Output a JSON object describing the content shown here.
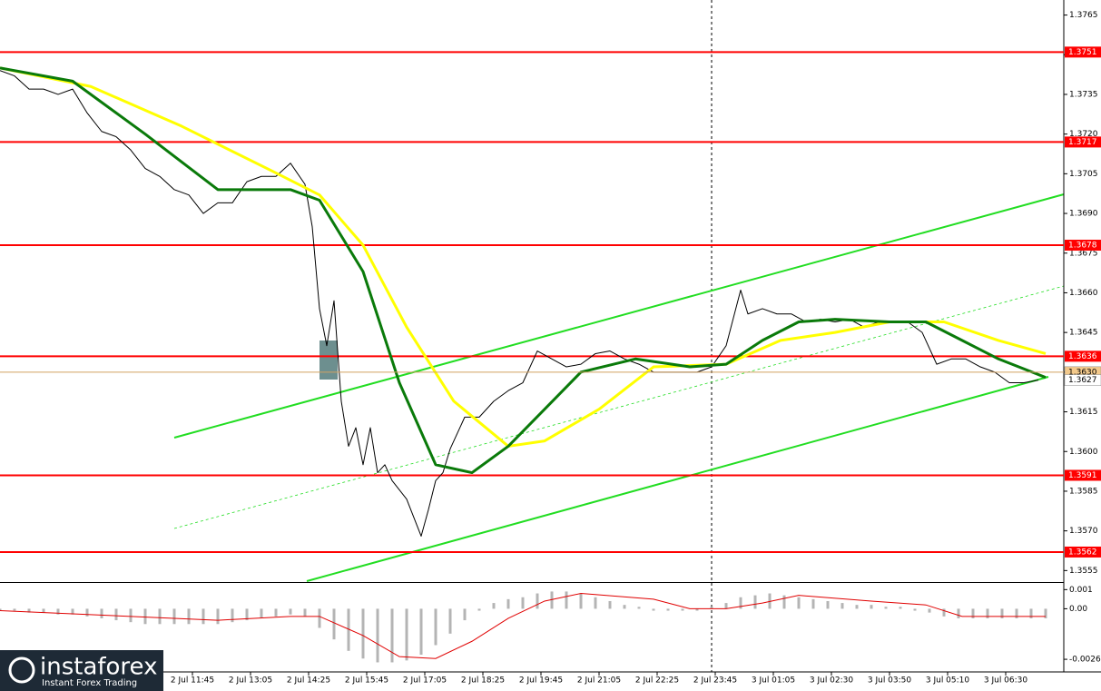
{
  "chart_data": [
    {
      "type": "line",
      "xlim": [
        0,
        293
      ],
      "xticks": [
        {
          "value": 53,
          "label": "2 Jul 11:45"
        },
        {
          "value": 69,
          "label": "2 Jul 13:05"
        },
        {
          "value": 85,
          "label": "2 Jul 14:25"
        },
        {
          "value": 101,
          "label": "2 Jul 15:45"
        },
        {
          "value": 117,
          "label": "2 Jul 17:05"
        },
        {
          "value": 133,
          "label": "2 Jul 18:25"
        },
        {
          "value": 149,
          "label": "2 Jul 19:45"
        },
        {
          "value": 165,
          "label": "2 Jul 21:05"
        },
        {
          "value": 181,
          "label": "2 Jul 22:25"
        },
        {
          "value": 197,
          "label": "2 Jul 23:45"
        },
        {
          "value": 213,
          "label": "3 Jul 01:05"
        },
        {
          "value": 229,
          "label": "3 Jul 02:30"
        },
        {
          "value": 245,
          "label": "3 Jul 03:50"
        },
        {
          "value": 261,
          "label": "3 Jul 05:10"
        },
        {
          "value": 277,
          "label": "3 Jul 06:30"
        }
      ],
      "ylim": [
        1.3551,
        1.377
      ],
      "yticks": [
        1.3765,
        {
          "value": 1.375,
          "label": "1.3750"
        },
        1.3735,
        {
          "value": 1.372,
          "label": "1.3720"
        },
        1.3705,
        {
          "value": 1.369,
          "label": "1.3690"
        },
        1.3675,
        {
          "value": 1.366,
          "label": "1.3660"
        },
        1.3645,
        {
          "value": 1.363,
          "label": "1.3630"
        },
        1.3615,
        {
          "value": 1.36,
          "label": "1.3600"
        },
        1.3585,
        {
          "value": 1.357,
          "label": "1.3570"
        },
        1.3555
      ],
      "levels": [
        1.3751,
        1.3717,
        1.3678,
        1.3636,
        1.3591,
        1.3562
      ],
      "level_color": "#ff0000",
      "price_labels": [
        {
          "value": 1.363,
          "label": "1.3630"
        },
        1.3627
      ],
      "series": [
        {
          "color": "#000000",
          "line_width": 1,
          "x": [
            0,
            4,
            8,
            12,
            16,
            20,
            24,
            28,
            32,
            36,
            40,
            44,
            48,
            52,
            56,
            60,
            64,
            68,
            72,
            76,
            80,
            84,
            86,
            88,
            90,
            92,
            94,
            96,
            98,
            100,
            102,
            104,
            106,
            108,
            112,
            116,
            118,
            120,
            122,
            124,
            128,
            132,
            136,
            140,
            144,
            148,
            152,
            156,
            160,
            164,
            168,
            172,
            176,
            180,
            184,
            188,
            192,
            196,
            200,
            204,
            206,
            210,
            214,
            218,
            222,
            226,
            230,
            234,
            238,
            242,
            246,
            250,
            254,
            258,
            262,
            266,
            270,
            274,
            278,
            282,
            286
          ],
          "values": [
            1.3744,
            1.3742,
            1.3737,
            1.3737,
            1.3735,
            1.3737,
            1.3728,
            1.3721,
            1.3719,
            1.3714,
            1.3707,
            1.3704,
            1.3699,
            1.3697,
            1.369,
            1.3694,
            1.3694,
            1.3702,
            1.3704,
            1.3704,
            1.3709,
            1.3701,
            1.3685,
            1.3654,
            1.364,
            1.3657,
            1.3619,
            1.3602,
            1.3609,
            1.3595,
            1.3609,
            1.3592,
            1.3595,
            1.3589,
            1.3582,
            1.3568,
            1.3578,
            1.3589,
            1.3592,
            1.3601,
            1.3613,
            1.3613,
            1.3619,
            1.3623,
            1.3626,
            1.3638,
            1.3635,
            1.3632,
            1.3633,
            1.3637,
            1.3638,
            1.3635,
            1.3633,
            1.363,
            1.363,
            1.363,
            1.363,
            1.3632,
            1.364,
            1.3661,
            1.3652,
            1.3654,
            1.3652,
            1.3652,
            1.3649,
            1.365,
            1.3649,
            1.365,
            1.3647,
            1.3649,
            1.3649,
            1.3649,
            1.3645,
            1.3633,
            1.3635,
            1.3635,
            1.3632,
            1.363,
            1.3626,
            1.3626,
            1.3627
          ]
        },
        {
          "color": "#ffff00",
          "line_width": 3,
          "x": [
            0,
            25,
            50,
            75,
            88,
            100,
            112,
            125,
            140,
            150,
            165,
            180,
            200,
            215,
            230,
            245,
            260,
            275,
            288
          ],
          "values": [
            1.3745,
            1.3738,
            1.3723,
            1.3706,
            1.3697,
            1.3678,
            1.3647,
            1.3619,
            1.3602,
            1.3604,
            1.3616,
            1.3632,
            1.3633,
            1.3642,
            1.3645,
            1.3649,
            1.3649,
            1.3642,
            1.3637
          ]
        },
        {
          "color": "#0a7a0a",
          "line_width": 3,
          "x": [
            0,
            20,
            40,
            60,
            80,
            88,
            100,
            110,
            120,
            130,
            140,
            150,
            160,
            175,
            190,
            200,
            210,
            220,
            230,
            245,
            255,
            265,
            275,
            288
          ],
          "values": [
            1.3745,
            1.374,
            1.372,
            1.3699,
            1.3699,
            1.3695,
            1.3668,
            1.3626,
            1.3595,
            1.3592,
            1.3602,
            1.3616,
            1.363,
            1.3635,
            1.3632,
            1.3633,
            1.3642,
            1.3649,
            1.365,
            1.3649,
            1.3649,
            1.3642,
            1.3635,
            1.3628
          ]
        }
      ]
    },
    {
      "type": "bar",
      "xlim": [
        0,
        293
      ],
      "ylim": [
        -0.0033,
        0.0013
      ],
      "yticks": [
        0.001,
        {
          "value": 0,
          "label": "0.00"
        },
        -0.00264
      ],
      "color": "#b4b4b4",
      "x": [
        0,
        4,
        8,
        12,
        16,
        20,
        24,
        28,
        32,
        36,
        40,
        44,
        48,
        52,
        56,
        60,
        64,
        68,
        72,
        76,
        80,
        84,
        88,
        92,
        96,
        100,
        104,
        108,
        112,
        116,
        120,
        124,
        128,
        132,
        136,
        140,
        144,
        148,
        152,
        156,
        160,
        164,
        168,
        172,
        176,
        180,
        184,
        188,
        192,
        196,
        200,
        204,
        208,
        212,
        216,
        220,
        224,
        228,
        232,
        236,
        240,
        244,
        248,
        252,
        256,
        260,
        264,
        268,
        272,
        276,
        280,
        284,
        288
      ],
      "values": [
        -0.0001,
        -0.0001,
        -0.0002,
        -0.0002,
        -0.0003,
        -0.0003,
        -0.0004,
        -0.0005,
        -0.0006,
        -0.0007,
        -0.0008,
        -0.0008,
        -0.0008,
        -0.0008,
        -0.0008,
        -0.0008,
        -0.0007,
        -0.0006,
        -0.0005,
        -0.0004,
        -0.0003,
        -0.0004,
        -0.001,
        -0.0016,
        -0.0022,
        -0.0026,
        -0.0028,
        -0.0028,
        -0.0027,
        -0.0024,
        -0.0019,
        -0.0013,
        -0.0006,
        -0.0001,
        0.0003,
        0.0005,
        0.0006,
        0.0008,
        0.0009,
        0.0009,
        0.0008,
        0.0006,
        0.0004,
        0.0002,
        0.0001,
        -0.0001,
        -0.0001,
        -0.0001,
        -0.0001,
        0.0001,
        0.0003,
        0.0006,
        0.0007,
        0.0008,
        0.0007,
        0.0006,
        0.0005,
        0.0004,
        0.0003,
        0.0002,
        0.0002,
        0.0001,
        0.0001,
        -0.0001,
        -0.0002,
        -0.0004,
        -0.0005,
        -0.0005,
        -0.0005,
        -0.0005,
        -0.0005,
        -0.0005,
        -0.0005
      ],
      "signal": {
        "color": "#e00000",
        "x": [
          0,
          60,
          80,
          88,
          100,
          110,
          120,
          130,
          140,
          150,
          160,
          180,
          190,
          200,
          210,
          220,
          240,
          255,
          265,
          288
        ],
        "values": [
          -0.0001,
          -0.0006,
          -0.0004,
          -0.0004,
          -0.0014,
          -0.0025,
          -0.0026,
          -0.0017,
          -0.0005,
          0.0004,
          0.0008,
          0.0005,
          0,
          0,
          0.0003,
          0.0007,
          0.0004,
          0.0002,
          -0.0004,
          -0.0004
        ]
      }
    }
  ],
  "watermark": {
    "brand": "instaforex",
    "tagline": "Instant Forex Trading"
  }
}
